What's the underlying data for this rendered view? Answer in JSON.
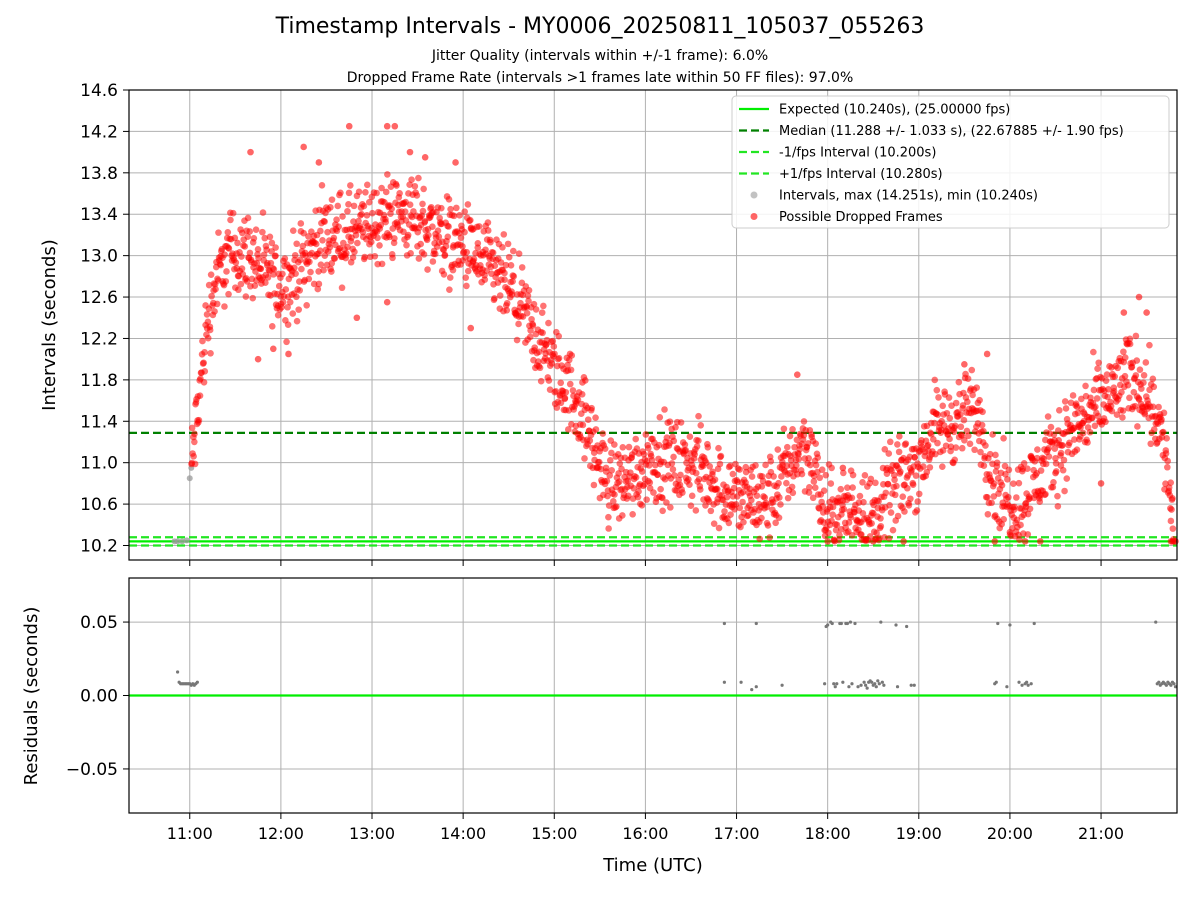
{
  "figure": {
    "title": "Timestamp Intervals - MY0006_20250811_105037_055263",
    "subtitle_1": "Jitter Quality (intervals within +/-1 frame): 6.0%",
    "subtitle_2": "Dropped Frame Rate (intervals >1 frames late within 50 FF files): 97.0%",
    "xlabel": "Time (UTC)"
  },
  "colors": {
    "expected": "#00ee00",
    "median": "#008000",
    "fps_interval": "#22e622",
    "intervals": "#999999",
    "dropped": "#ff0000",
    "residuals": "#777777",
    "grid": "#b0b0b0"
  },
  "chart_data": [
    {
      "type": "scatter",
      "ylabel": "Intervals (seconds)",
      "xlim": [
        "10:20",
        "21:50"
      ],
      "ylim": [
        10.06,
        14.6
      ],
      "x_ticks": [
        "11:00",
        "12:00",
        "13:00",
        "14:00",
        "15:00",
        "16:00",
        "17:00",
        "18:00",
        "19:00",
        "20:00",
        "21:00"
      ],
      "y_ticks": [
        "10.2",
        "10.6",
        "11.0",
        "11.4",
        "11.8",
        "12.2",
        "12.6",
        "13.0",
        "13.4",
        "13.8",
        "14.2",
        "14.6"
      ],
      "grid": true,
      "legend_position": "top-right",
      "reference_lines": [
        {
          "name": "Expected (10.240s), (25.00000 fps)",
          "y": 10.24,
          "style": "solid",
          "color": "#00ee00"
        },
        {
          "name": "Median (11.288 +/- 1.033 s), (22.67885 +/- 1.90 fps)",
          "y": 11.288,
          "style": "dashed",
          "color": "#008000"
        },
        {
          "name": "-1/fps Interval (10.200s)",
          "y": 10.2,
          "style": "dashed",
          "color": "#22e622"
        },
        {
          "name": "+1/fps Interval (10.280s)",
          "y": 10.28,
          "style": "dashed",
          "color": "#22e622"
        }
      ],
      "series": [
        {
          "name": "Intervals, max (14.251s), min (10.240s)",
          "marker": "circle",
          "color": "#999999",
          "points": [
            [
              "10:50",
              10.24
            ],
            [
              "10:52",
              10.24
            ],
            [
              "10:55",
              10.24
            ],
            [
              "10:58",
              10.25
            ],
            [
              "11:00",
              10.85
            ],
            [
              "11:01",
              10.95
            ]
          ]
        },
        {
          "name": "Possible Dropped Frames",
          "marker": "circle",
          "color": "#ff0000",
          "trend": [
            [
              "11:01",
              10.95
            ],
            [
              "11:04",
              11.3
            ],
            [
              "11:08",
              11.9
            ],
            [
              "11:12",
              12.4
            ],
            [
              "11:18",
              12.8
            ],
            [
              "11:28",
              13.05
            ],
            [
              "11:40",
              13.0
            ],
            [
              "11:55",
              12.75
            ],
            [
              "12:05",
              12.7
            ],
            [
              "12:15",
              12.95
            ],
            [
              "12:30",
              13.2
            ],
            [
              "12:45",
              13.2
            ],
            [
              "13:00",
              13.3
            ],
            [
              "13:15",
              13.4
            ],
            [
              "13:30",
              13.35
            ],
            [
              "13:45",
              13.2
            ],
            [
              "14:00",
              13.1
            ],
            [
              "14:15",
              12.9
            ],
            [
              "14:30",
              12.7
            ],
            [
              "14:45",
              12.3
            ],
            [
              "15:00",
              11.9
            ],
            [
              "15:15",
              11.6
            ],
            [
              "15:25",
              11.2
            ],
            [
              "15:35",
              10.8
            ],
            [
              "15:50",
              10.85
            ],
            [
              "16:05",
              11.05
            ],
            [
              "16:20",
              11.0
            ],
            [
              "16:35",
              10.95
            ],
            [
              "16:50",
              10.75
            ],
            [
              "17:05",
              10.65
            ],
            [
              "17:15",
              10.6
            ],
            [
              "17:25",
              10.7
            ],
            [
              "17:35",
              11.0
            ],
            [
              "17:45",
              11.2
            ],
            [
              "17:52",
              10.9
            ],
            [
              "17:58",
              10.5
            ],
            [
              "18:10",
              10.5
            ],
            [
              "18:20",
              10.6
            ],
            [
              "18:30",
              10.45
            ],
            [
              "18:40",
              10.7
            ],
            [
              "18:50",
              10.85
            ],
            [
              "19:00",
              11.0
            ],
            [
              "19:10",
              11.3
            ],
            [
              "19:25",
              11.4
            ],
            [
              "19:40",
              11.5
            ],
            [
              "19:45",
              11.0
            ],
            [
              "19:55",
              10.7
            ],
            [
              "20:05",
              10.6
            ],
            [
              "20:15",
              10.8
            ],
            [
              "20:25",
              11.0
            ],
            [
              "20:40",
              11.3
            ],
            [
              "20:55",
              11.5
            ],
            [
              "21:10",
              11.7
            ],
            [
              "21:20",
              11.85
            ],
            [
              "21:30",
              11.7
            ],
            [
              "21:38",
              11.4
            ],
            [
              "21:44",
              10.9
            ],
            [
              "21:48",
              10.25
            ]
          ],
          "spread": 0.35,
          "highlights": [
            [
              "11:40",
              14.0
            ],
            [
              "12:15",
              14.05
            ],
            [
              "12:25",
              13.9
            ],
            [
              "12:45",
              14.25
            ],
            [
              "13:10",
              14.25
            ],
            [
              "13:15",
              14.25
            ],
            [
              "13:25",
              14.0
            ],
            [
              "13:35",
              13.95
            ],
            [
              "13:55",
              13.9
            ],
            [
              "12:05",
              12.05
            ],
            [
              "11:55",
              12.1
            ],
            [
              "11:45",
              12.0
            ],
            [
              "13:10",
              12.55
            ],
            [
              "12:50",
              12.4
            ],
            [
              "14:05",
              12.3
            ],
            [
              "17:40",
              11.85
            ],
            [
              "19:30",
              11.95
            ],
            [
              "19:45",
              12.05
            ],
            [
              "21:15",
              12.45
            ],
            [
              "21:25",
              12.6
            ],
            [
              "21:30",
              12.45
            ],
            [
              "21:00",
              10.8
            ],
            [
              "18:10",
              10.95
            ],
            [
              "20:30",
              10.9
            ],
            [
              "18:00",
              10.24
            ],
            [
              "18:30",
              10.24
            ],
            [
              "18:50",
              10.24
            ],
            [
              "19:50",
              10.24
            ],
            [
              "20:10",
              10.24
            ],
            [
              "20:20",
              10.24
            ],
            [
              "21:46",
              10.24
            ],
            [
              "21:47",
              10.24
            ],
            [
              "21:48",
              10.24
            ],
            [
              "21:49",
              10.24
            ]
          ]
        }
      ]
    },
    {
      "type": "scatter",
      "ylabel": "Residuals (seconds)",
      "xlim": [
        "10:20",
        "21:50"
      ],
      "ylim": [
        -0.08,
        0.08
      ],
      "y_ticks": [
        "0.05",
        "0.00",
        "−0.05"
      ],
      "grid": true,
      "reference_lines": [
        {
          "name": "",
          "y": 0.0,
          "style": "solid",
          "color": "#00ee00"
        }
      ],
      "series": [
        {
          "name": "",
          "marker": "dot",
          "color": "#777777",
          "points": [
            [
              "10:52",
              0.016
            ],
            [
              "10:53",
              0.009
            ],
            [
              "10:54",
              0.008
            ],
            [
              "10:55",
              0.008
            ],
            [
              "10:56",
              0.008
            ],
            [
              "10:57",
              0.008
            ],
            [
              "10:58",
              0.008
            ],
            [
              "10:59",
              0.008
            ],
            [
              "11:00",
              0.008
            ],
            [
              "11:01",
              0.007
            ],
            [
              "11:02",
              0.008
            ],
            [
              "11:03",
              0.007
            ],
            [
              "11:04",
              0.008
            ],
            [
              "11:05",
              0.009
            ],
            [
              "16:52",
              0.049
            ],
            [
              "16:52",
              0.009
            ],
            [
              "17:03",
              0.009
            ],
            [
              "17:10",
              0.004
            ],
            [
              "17:13",
              0.049
            ],
            [
              "17:13",
              0.006
            ],
            [
              "17:30",
              0.007
            ],
            [
              "17:58",
              0.008
            ],
            [
              "17:59",
              0.047
            ],
            [
              "18:00",
              0.048
            ],
            [
              "18:02",
              0.05
            ],
            [
              "18:03",
              0.049
            ],
            [
              "18:04",
              0.008
            ],
            [
              "18:05",
              0.006
            ],
            [
              "18:06",
              0.008
            ],
            [
              "18:08",
              0.049
            ],
            [
              "18:09",
              0.049
            ],
            [
              "18:10",
              0.009
            ],
            [
              "18:12",
              0.049
            ],
            [
              "18:13",
              0.049
            ],
            [
              "18:14",
              0.006
            ],
            [
              "18:15",
              0.05
            ],
            [
              "18:16",
              0.008
            ],
            [
              "18:18",
              0.049
            ],
            [
              "18:20",
              0.006
            ],
            [
              "18:22",
              0.007
            ],
            [
              "18:24",
              0.009
            ],
            [
              "18:25",
              0.007
            ],
            [
              "18:26",
              0.005
            ],
            [
              "18:27",
              0.009
            ],
            [
              "18:28",
              0.01
            ],
            [
              "18:29",
              0.009
            ],
            [
              "18:30",
              0.007
            ],
            [
              "18:31",
              0.008
            ],
            [
              "18:32",
              0.006
            ],
            [
              "18:33",
              0.01
            ],
            [
              "18:34",
              0.008
            ],
            [
              "18:35",
              0.05
            ],
            [
              "18:36",
              0.009
            ],
            [
              "18:37",
              0.007
            ],
            [
              "18:45",
              0.048
            ],
            [
              "18:46",
              0.006
            ],
            [
              "18:52",
              0.047
            ],
            [
              "18:55",
              0.007
            ],
            [
              "18:57",
              0.007
            ],
            [
              "19:50",
              0.008
            ],
            [
              "19:51",
              0.009
            ],
            [
              "19:52",
              0.049
            ],
            [
              "19:58",
              0.006
            ],
            [
              "20:00",
              0.048
            ],
            [
              "20:06",
              0.009
            ],
            [
              "20:08",
              0.007
            ],
            [
              "20:10",
              0.008
            ],
            [
              "20:11",
              0.009
            ],
            [
              "20:12",
              0.007
            ],
            [
              "20:14",
              0.008
            ],
            [
              "20:16",
              0.049
            ],
            [
              "21:36",
              0.05
            ],
            [
              "21:37",
              0.008
            ],
            [
              "21:38",
              0.009
            ],
            [
              "21:39",
              0.007
            ],
            [
              "21:40",
              0.008
            ],
            [
              "21:41",
              0.009
            ],
            [
              "21:42",
              0.008
            ],
            [
              "21:43",
              0.007
            ],
            [
              "21:44",
              0.009
            ],
            [
              "21:45",
              0.008
            ],
            [
              "21:46",
              0.007
            ],
            [
              "21:47",
              0.009
            ],
            [
              "21:48",
              0.008
            ],
            [
              "21:49",
              0.006
            ]
          ]
        }
      ]
    }
  ]
}
